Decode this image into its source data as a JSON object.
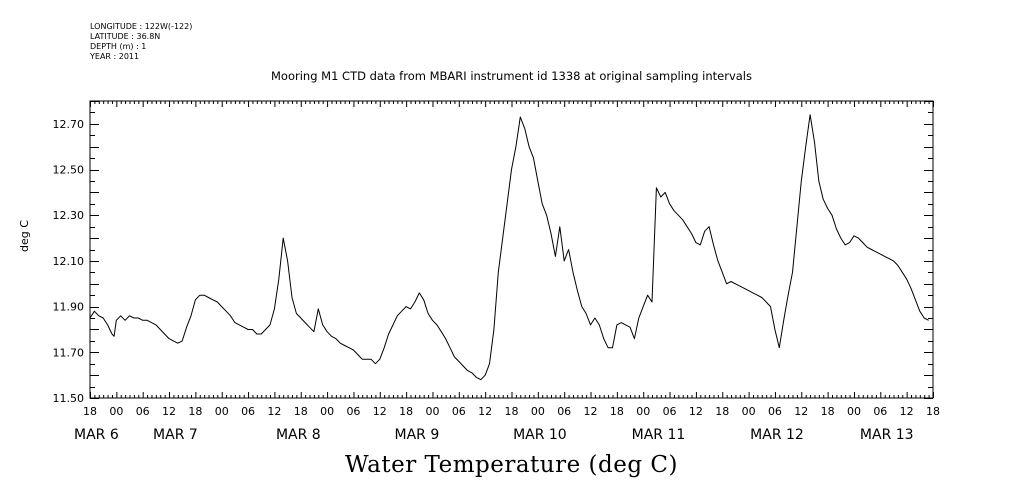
{
  "header": {
    "longitude": "LONGITUDE : 122W(-122)",
    "latitude": "LATITUDE : 36.8N",
    "depth": "DEPTH (m) : 1",
    "year": "YEAR : 2011"
  },
  "chart_data": {
    "type": "line",
    "title": "Mooring M1 CTD data from MBARI instrument id 1338 at original sampling intervals",
    "xlabel": "Water Temperature (deg C)",
    "ylabel": "deg C",
    "x_unit": "hours after 2011-03-05 18:00",
    "xlim": [
      0,
      192
    ],
    "ylim": [
      11.5,
      12.8
    ],
    "y_ticks": [
      "11.50",
      "11.70",
      "11.90",
      "12.10",
      "12.30",
      "12.50",
      "12.70"
    ],
    "hour_ticks": [
      "18",
      "00",
      "06",
      "12",
      "18",
      "00",
      "06",
      "12",
      "18",
      "00",
      "06",
      "12",
      "18",
      "00",
      "06",
      "12",
      "18",
      "00",
      "06",
      "12",
      "18",
      "00",
      "06",
      "12",
      "18",
      "00",
      "06",
      "12",
      "18",
      "00",
      "06",
      "12",
      "18"
    ],
    "day_labels": [
      {
        "text": "MAR  6",
        "x": 0
      },
      {
        "text": "MAR  7",
        "x": 18
      },
      {
        "text": "MAR  8",
        "x": 46
      },
      {
        "text": "MAR  9",
        "x": 73
      },
      {
        "text": "MAR 10",
        "x": 100
      },
      {
        "text": "MAR 11",
        "x": 127
      },
      {
        "text": "MAR 12",
        "x": 154
      },
      {
        "text": "MAR 13",
        "x": 179
      }
    ],
    "grid": false,
    "series": [
      {
        "color": "#000000",
        "x": [
          0,
          1,
          2,
          3,
          4,
          5,
          5.5,
          6,
          7,
          8,
          9,
          10,
          11,
          12,
          13,
          14,
          15,
          16,
          17,
          18,
          19,
          20,
          21,
          22,
          23,
          24,
          25,
          26,
          27,
          28,
          29,
          30,
          31,
          32,
          33,
          34,
          35,
          36,
          37,
          38,
          39,
          40,
          41,
          42,
          43,
          44,
          45,
          46,
          47,
          48,
          49,
          50,
          51,
          52,
          53,
          54,
          55,
          56,
          57,
          58,
          59,
          60,
          61,
          62,
          63,
          64,
          65,
          66,
          67,
          68,
          69,
          70,
          71,
          72,
          73,
          74,
          75,
          76,
          77,
          78,
          79,
          80,
          81,
          82,
          83,
          84,
          85,
          86,
          87,
          88,
          89,
          90,
          91,
          92,
          93,
          94,
          95,
          96,
          97,
          98,
          99,
          100,
          101,
          102,
          103,
          104,
          105,
          106,
          107,
          108,
          109,
          110,
          111,
          112,
          113,
          114,
          115,
          116,
          117,
          118,
          119,
          120,
          121,
          122,
          123,
          124,
          125,
          126,
          127,
          128,
          129,
          130,
          131,
          132,
          133,
          134,
          135,
          136,
          137,
          138,
          139,
          140,
          141,
          142,
          143,
          144,
          145,
          146,
          147,
          148,
          149,
          150,
          151,
          152,
          153,
          154,
          155,
          156,
          157,
          158,
          159,
          160,
          161,
          162,
          163,
          164,
          165,
          166,
          167,
          168,
          169,
          170,
          171,
          172,
          173,
          174,
          175,
          176,
          177,
          178,
          179,
          180,
          181,
          182,
          183,
          184,
          185,
          186,
          187,
          188,
          189,
          190,
          191
        ],
        "y": [
          11.85,
          11.88,
          11.86,
          11.85,
          11.82,
          11.78,
          11.77,
          11.84,
          11.86,
          11.84,
          11.86,
          11.85,
          11.85,
          11.84,
          11.84,
          11.83,
          11.82,
          11.8,
          11.78,
          11.76,
          11.75,
          11.74,
          11.75,
          11.81,
          11.86,
          11.93,
          11.95,
          11.95,
          11.94,
          11.93,
          11.92,
          11.9,
          11.88,
          11.86,
          11.83,
          11.82,
          11.81,
          11.8,
          11.8,
          11.78,
          11.78,
          11.8,
          11.82,
          11.89,
          12.02,
          12.2,
          12.1,
          11.94,
          11.87,
          11.85,
          11.83,
          11.81,
          11.79,
          11.89,
          11.82,
          11.79,
          11.77,
          11.76,
          11.74,
          11.73,
          11.72,
          11.71,
          11.69,
          11.67,
          11.67,
          11.67,
          11.65,
          11.67,
          11.72,
          11.78,
          11.82,
          11.86,
          11.88,
          11.9,
          11.89,
          11.92,
          11.96,
          11.93,
          11.87,
          11.84,
          11.82,
          11.79,
          11.76,
          11.72,
          11.68,
          11.66,
          11.64,
          11.62,
          11.61,
          11.59,
          11.58,
          11.6,
          11.65,
          11.8,
          12.05,
          12.2,
          12.35,
          12.5,
          12.6,
          12.73,
          12.68,
          12.6,
          12.55,
          12.45,
          12.35,
          12.3,
          12.22,
          12.12,
          12.25,
          12.1,
          12.15,
          12.05,
          11.97,
          11.9,
          11.87,
          11.82,
          11.85,
          11.82,
          11.76,
          11.72,
          11.72,
          11.82,
          11.83,
          11.82,
          11.81,
          11.76,
          11.85,
          11.9,
          11.95,
          11.92,
          12.42,
          12.38,
          12.4,
          12.35,
          12.32,
          12.3,
          12.28,
          12.25,
          12.22,
          12.18,
          12.17,
          12.23,
          12.25,
          12.17,
          12.1,
          12.05,
          12.0,
          12.01,
          12.0,
          11.99,
          11.98,
          11.97,
          11.96,
          11.95,
          11.94,
          11.92,
          11.9,
          11.8,
          11.72,
          11.84,
          11.95,
          12.05,
          12.25,
          12.45,
          12.6,
          12.74,
          12.62,
          12.45,
          12.37,
          12.33,
          12.3,
          12.24,
          12.2,
          12.17,
          12.18,
          12.21,
          12.2,
          12.18,
          12.16,
          12.15,
          12.14,
          12.13,
          12.12,
          12.11,
          12.1,
          12.08,
          12.05,
          12.02,
          11.98,
          11.93,
          11.88,
          11.85,
          11.84
        ]
      }
    ]
  }
}
